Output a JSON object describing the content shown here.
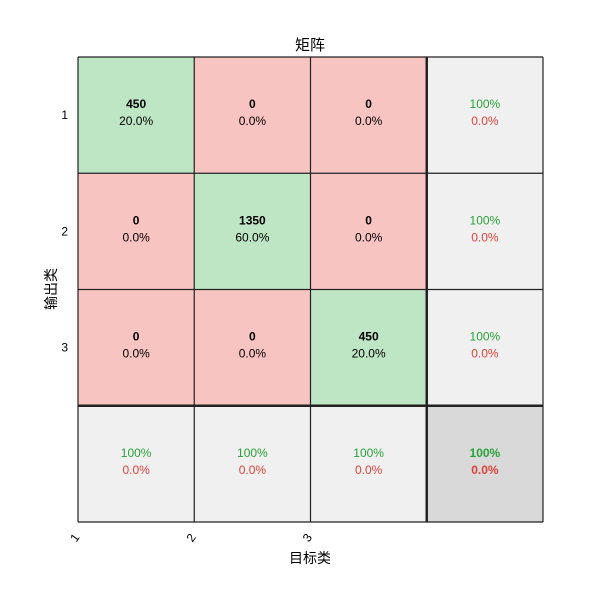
{
  "colors": {
    "correct_fill": "#bfe6c4",
    "wrong_fill": "#f8c4c1",
    "summary_fill": "#f0f0f0",
    "overall_fill": "#d9d9d9",
    "green_text": "#2aa13a",
    "red_text": "#e0433a",
    "grid_line": "#222222"
  },
  "chart_data": {
    "type": "heatmap",
    "title": "矩阵",
    "xlabel": "目标类",
    "ylabel": "输出类",
    "x_tick_labels": [
      "1",
      "2",
      "3"
    ],
    "y_tick_labels": [
      "1",
      "2",
      "3"
    ],
    "cells": [
      [
        {
          "count": "450",
          "pct": "20.0%"
        },
        {
          "count": "0",
          "pct": "0.0%"
        },
        {
          "count": "0",
          "pct": "0.0%"
        }
      ],
      [
        {
          "count": "0",
          "pct": "0.0%"
        },
        {
          "count": "1350",
          "pct": "60.0%"
        },
        {
          "count": "0",
          "pct": "0.0%"
        }
      ],
      [
        {
          "count": "0",
          "pct": "0.0%"
        },
        {
          "count": "0",
          "pct": "0.0%"
        },
        {
          "count": "450",
          "pct": "20.0%"
        }
      ]
    ],
    "row_summary": [
      {
        "correct": "100%",
        "wrong": "0.0%"
      },
      {
        "correct": "100%",
        "wrong": "0.0%"
      },
      {
        "correct": "100%",
        "wrong": "0.0%"
      }
    ],
    "col_summary": [
      {
        "correct": "100%",
        "wrong": "0.0%"
      },
      {
        "correct": "100%",
        "wrong": "0.0%"
      },
      {
        "correct": "100%",
        "wrong": "0.0%"
      }
    ],
    "overall": {
      "correct": "100%",
      "wrong": "0.0%"
    }
  }
}
